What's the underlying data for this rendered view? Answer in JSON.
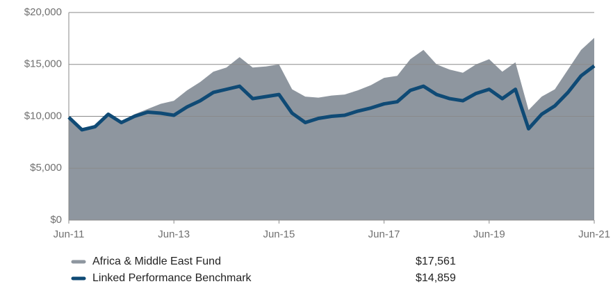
{
  "chart_data": {
    "type": "area-line",
    "categories": [
      "Jun-11",
      null,
      null,
      null,
      null,
      null,
      null,
      null,
      "Jun-13",
      null,
      null,
      null,
      null,
      null,
      null,
      null,
      "Jun-15",
      null,
      null,
      null,
      null,
      null,
      null,
      null,
      "Jun-17",
      null,
      null,
      null,
      null,
      null,
      null,
      null,
      "Jun-19",
      null,
      null,
      null,
      null,
      null,
      null,
      null,
      "Jun-21"
    ],
    "series": [
      {
        "name": "Africa & Middle East Fund",
        "color": "#8e969f",
        "style": "area",
        "end_label": "$17,561",
        "values": [
          10000,
          8700,
          9000,
          10200,
          9500,
          10200,
          10700,
          11200,
          11500,
          12500,
          13300,
          14300,
          14700,
          15700,
          14700,
          14800,
          15000,
          12600,
          11900,
          11800,
          12000,
          12100,
          12500,
          13000,
          13700,
          13900,
          15500,
          16400,
          15000,
          14500,
          14200,
          15000,
          15500,
          14300,
          15200,
          10600,
          11900,
          12600,
          14500,
          16400,
          17561
        ]
      },
      {
        "name": "Linked Performance Benchmark",
        "color": "#0f4a75",
        "style": "line",
        "end_label": "$14,859",
        "values": [
          9900,
          8700,
          9000,
          10200,
          9400,
          10000,
          10400,
          10300,
          10100,
          10900,
          11500,
          12300,
          12600,
          12900,
          11700,
          11900,
          12100,
          10300,
          9400,
          9800,
          10000,
          10100,
          10500,
          10800,
          11200,
          11400,
          12500,
          12900,
          12100,
          11700,
          11500,
          12200,
          12600,
          11700,
          12600,
          8800,
          10200,
          11000,
          12300,
          13900,
          14859
        ]
      }
    ],
    "ylim": [
      0,
      20000
    ],
    "yticks": [
      {
        "value": 0,
        "label": "$0"
      },
      {
        "value": 5000,
        "label": "$5,000"
      },
      {
        "value": 10000,
        "label": "$10,000"
      },
      {
        "value": 15000,
        "label": "$15,000"
      },
      {
        "value": 20000,
        "label": "$20,000"
      }
    ],
    "grid": true
  }
}
